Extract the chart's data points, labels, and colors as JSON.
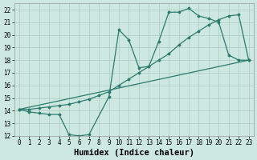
{
  "xlabel": "Humidex (Indice chaleur)",
  "xlim": [
    -0.5,
    23.5
  ],
  "ylim": [
    12,
    22.5
  ],
  "xticks": [
    0,
    1,
    2,
    3,
    4,
    5,
    6,
    7,
    8,
    9,
    10,
    11,
    12,
    13,
    14,
    15,
    16,
    17,
    18,
    19,
    20,
    21,
    22,
    23
  ],
  "yticks": [
    12,
    13,
    14,
    15,
    16,
    17,
    18,
    19,
    20,
    21,
    22
  ],
  "bg_color": "#cce8e0",
  "line_color": "#2d7a6e",
  "grid_color": "#aaccbf",
  "line1_x": [
    0,
    1,
    2,
    3,
    4,
    5,
    6,
    7,
    9,
    10,
    11,
    12,
    13,
    14,
    15,
    16,
    17,
    18,
    19,
    20,
    21,
    22,
    23
  ],
  "line1_y": [
    14.1,
    13.9,
    13.8,
    13.7,
    13.7,
    12.1,
    12.0,
    12.1,
    15.1,
    20.4,
    19.6,
    17.4,
    17.5,
    19.5,
    21.8,
    21.8,
    22.1,
    21.5,
    21.3,
    21.0,
    18.4,
    18.0,
    18.0
  ],
  "line2_x": [
    0,
    1,
    2,
    3,
    4,
    5,
    6,
    7,
    8,
    9,
    10,
    11,
    12,
    13,
    14,
    15,
    16,
    17,
    18,
    19,
    20,
    21,
    22,
    23
  ],
  "line2_y": [
    14.1,
    14.1,
    14.2,
    14.3,
    14.4,
    14.5,
    14.7,
    14.9,
    15.2,
    15.5,
    16.0,
    16.5,
    17.0,
    17.5,
    18.0,
    18.5,
    19.2,
    19.8,
    20.3,
    20.8,
    21.2,
    21.5,
    21.6,
    18.0
  ],
  "line3_x": [
    0,
    23
  ],
  "line3_y": [
    14.1,
    18.0
  ],
  "font_family": "monospace",
  "tick_fontsize": 5.5,
  "xlabel_fontsize": 7.5
}
